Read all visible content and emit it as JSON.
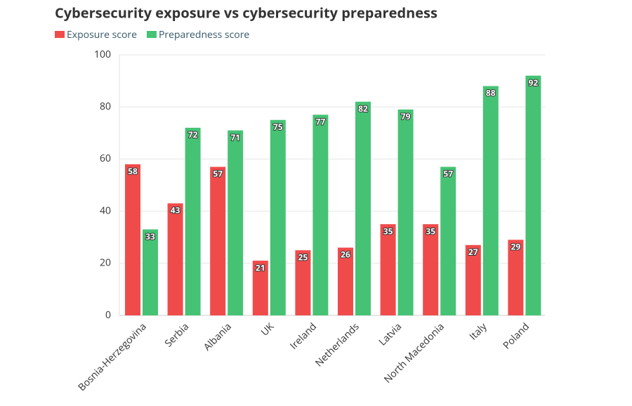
{
  "chart_data": {
    "type": "bar",
    "title": "Cybersecurity exposure vs cybersecurity preparedness",
    "categories": [
      "Bosnia-Herzegovina",
      "Serbia",
      "Albania",
      "UK",
      "Ireland",
      "Netherlands",
      "Latvia",
      "North Macedonia",
      "Italy",
      "Poland"
    ],
    "series": [
      {
        "name": "Exposure score",
        "color": "#f04b4b",
        "values": [
          58,
          43,
          57,
          21,
          25,
          26,
          35,
          35,
          27,
          29
        ]
      },
      {
        "name": "Preparedness score",
        "color": "#46c274",
        "values": [
          33,
          72,
          71,
          75,
          77,
          82,
          79,
          57,
          88,
          92
        ]
      }
    ],
    "ylim": [
      0,
      100
    ],
    "yticks": [
      0,
      20,
      40,
      60,
      80,
      100
    ],
    "grid": true
  }
}
